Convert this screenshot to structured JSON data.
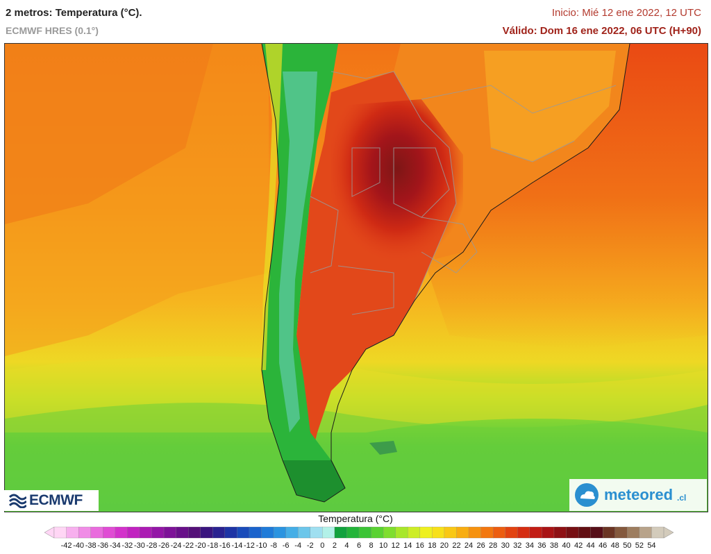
{
  "header": {
    "title": "2 metros: Temperatura (°C).",
    "model": "ECMWF HRES (0.1°)",
    "init": "Inicio: Mié 12 ene 2022, 12 UTC",
    "valid": "Válido: Dom 16 ene 2022, 06 UTC (H+90)"
  },
  "logos": {
    "ecmwf": "ECMWF",
    "meteored": "meteored",
    "meteored_suffix": ".cl"
  },
  "legend": {
    "title": "Temperatura (°C)",
    "ticks": [
      "-42",
      "-40",
      "-38",
      "-36",
      "-34",
      "-32",
      "-30",
      "-28",
      "-26",
      "-24",
      "-22",
      "-20",
      "-18",
      "-16",
      "-14",
      "-12",
      "-10",
      "-8",
      "-6",
      "-4",
      "-2",
      "0",
      "2",
      "4",
      "6",
      "8",
      "10",
      "12",
      "14",
      "16",
      "18",
      "20",
      "22",
      "24",
      "26",
      "28",
      "30",
      "32",
      "34",
      "36",
      "38",
      "40",
      "42",
      "44",
      "46",
      "48",
      "50",
      "52",
      "54"
    ],
    "colors": [
      "#ffd6f5",
      "#f7b0ee",
      "#f08ce6",
      "#e96bdd",
      "#e04cd4",
      "#d332cb",
      "#c123c0",
      "#ab1bb3",
      "#9316a6",
      "#7d1298",
      "#681089",
      "#541078",
      "#3a157f",
      "#2a2290",
      "#1e34a5",
      "#1a4cba",
      "#1a63cc",
      "#1f7bd8",
      "#2b94e0",
      "#45aee6",
      "#6cc6ea",
      "#9fdff0",
      "#b2f1e8",
      "#12a23e",
      "#24b43a",
      "#3cc436",
      "#5ad232",
      "#7fde2e",
      "#a8e72a",
      "#cded26",
      "#eef020",
      "#f7e01a",
      "#f9c815",
      "#f8ad11",
      "#f6920f",
      "#f2770f",
      "#ec5d10",
      "#e24311",
      "#d52d12",
      "#c21c14",
      "#a91315",
      "#8e1014",
      "#760f13",
      "#620e12",
      "#570f19",
      "#6b3524",
      "#84593d",
      "#9d7d5f",
      "#b8a38a",
      "#d3cbbb"
    ]
  },
  "colors": {
    "header_red": "#a0231a",
    "ocean_north": "#f47a1a",
    "ocean_south": "#5ac93e",
    "heat_core": "#8e1b1a"
  }
}
